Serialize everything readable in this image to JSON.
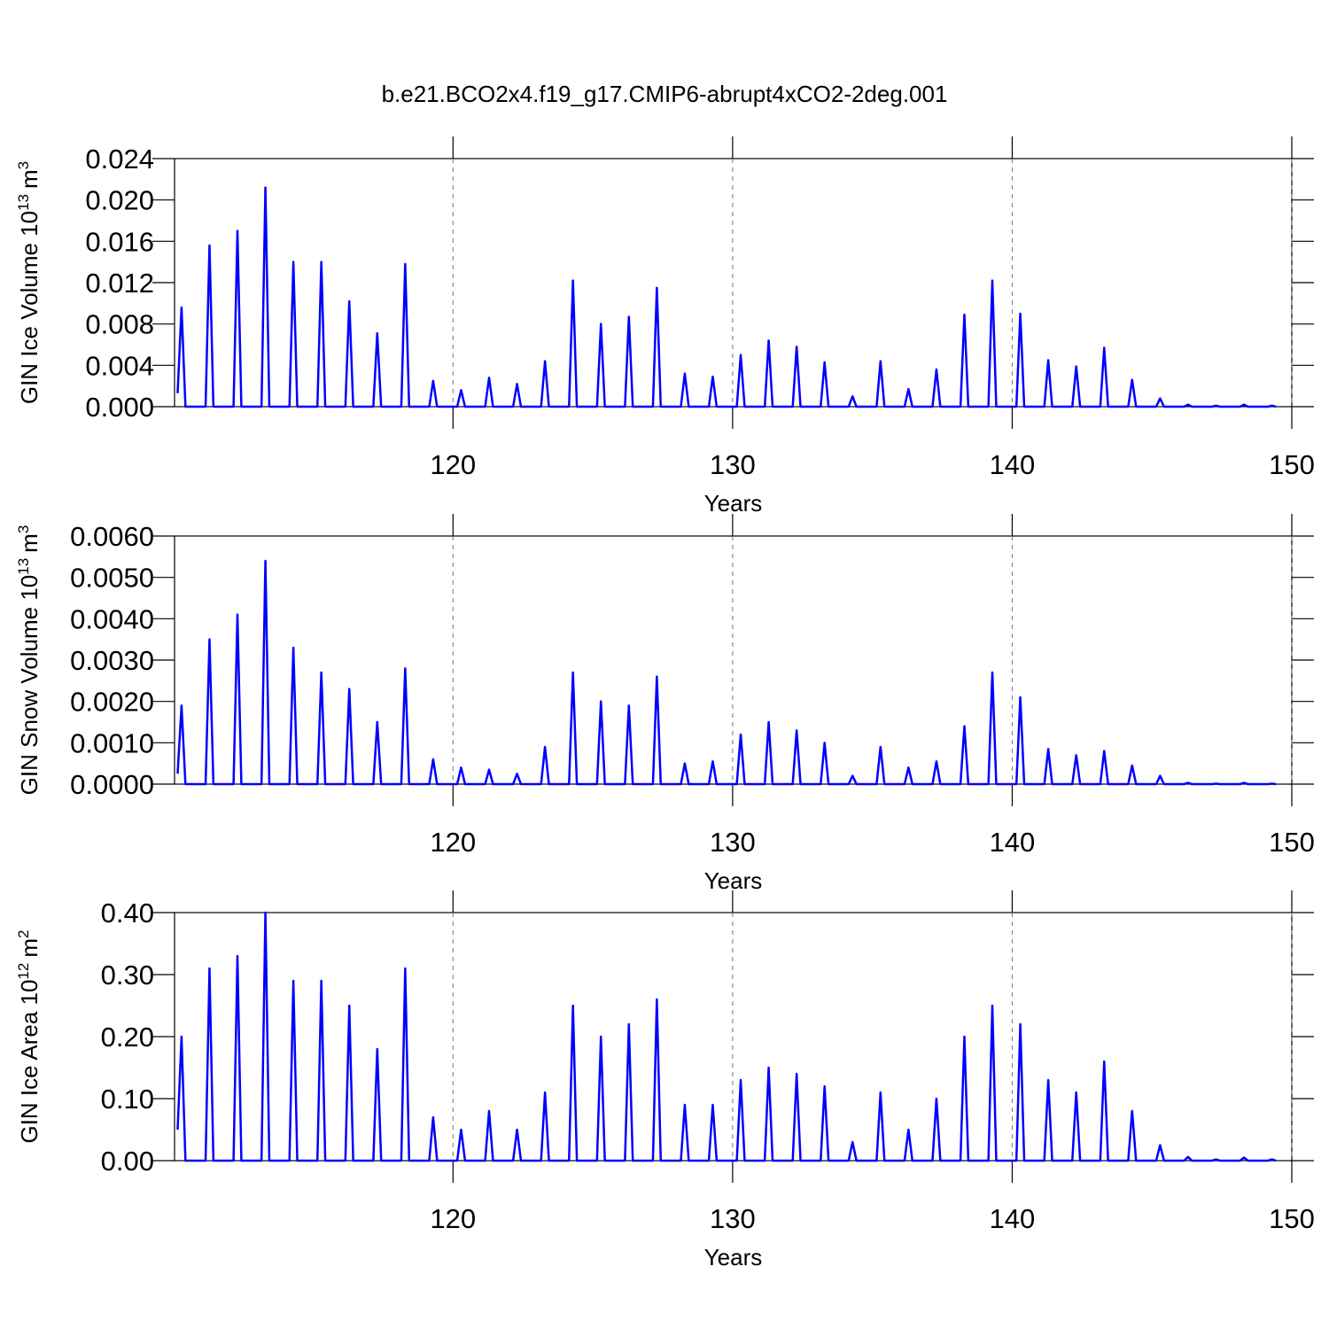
{
  "title": "b.e21.BCO2x4.f19_g17.CMIP6-abrupt4xCO2-2deg.001",
  "chart_data": [
    {
      "type": "line",
      "xlabel": "Years",
      "ylabel": {
        "text": "GIN Ice Volume 10",
        "exp": "13",
        "unit": "m",
        "unit_exp": "3"
      },
      "xlim": [
        110.04,
        150
      ],
      "xticks": [
        120,
        130,
        140,
        150
      ],
      "ylim": [
        0,
        0.024
      ],
      "yticks": [
        {
          "value": 0,
          "label": "0.000"
        },
        {
          "value": 0.004,
          "label": "0.004"
        },
        {
          "value": 0.008,
          "label": "0.008"
        },
        {
          "value": 0.012,
          "label": "0.012"
        },
        {
          "value": 0.016,
          "label": "0.016"
        },
        {
          "value": 0.02,
          "label": "0.020"
        },
        {
          "value": 0.024,
          "label": "0.024"
        }
      ],
      "grid": true,
      "x": [
        110.15,
        110.29,
        110.43,
        111.15,
        111.29,
        111.43,
        112.15,
        112.29,
        112.43,
        113.15,
        113.29,
        113.43,
        114.15,
        114.29,
        114.43,
        115.15,
        115.29,
        115.43,
        116.15,
        116.29,
        116.43,
        117.15,
        117.29,
        117.43,
        118.15,
        118.29,
        118.43,
        119.15,
        119.29,
        119.43,
        120.15,
        120.29,
        120.43,
        121.15,
        121.29,
        121.43,
        122.15,
        122.29,
        122.43,
        123.15,
        123.29,
        123.43,
        124.15,
        124.29,
        124.43,
        125.15,
        125.29,
        125.43,
        126.15,
        126.29,
        126.43,
        127.15,
        127.29,
        127.43,
        128.15,
        128.29,
        128.43,
        129.15,
        129.29,
        129.43,
        130.15,
        130.29,
        130.43,
        131.15,
        131.29,
        131.43,
        132.15,
        132.29,
        132.43,
        133.15,
        133.29,
        133.43,
        134.15,
        134.29,
        134.43,
        135.15,
        135.29,
        135.43,
        136.15,
        136.29,
        136.43,
        137.15,
        137.29,
        137.43,
        138.15,
        138.29,
        138.43,
        139.15,
        139.29,
        139.43,
        140.15,
        140.29,
        140.43,
        141.15,
        141.29,
        141.43,
        142.15,
        142.29,
        142.43,
        143.15,
        143.29,
        143.43,
        144.15,
        144.29,
        144.43,
        145.15,
        145.29,
        145.43,
        146.15,
        146.29,
        146.43,
        147.15,
        147.29,
        147.43,
        148.15,
        148.29,
        148.43,
        149.15,
        149.29,
        149.43
      ],
      "series": [
        {
          "color": "#0000ff",
          "values": [
            0.0013,
            0.0096,
            0,
            0,
            0.0156,
            0,
            0,
            0.017,
            0,
            0,
            0.0212,
            0,
            0,
            0.014,
            0,
            0,
            0.014,
            0,
            0,
            0.0102,
            0,
            0,
            0.0071,
            0,
            0,
            0.0138,
            0,
            0,
            0.0025,
            0,
            0,
            0.0016,
            0,
            0,
            0.0028,
            0,
            0,
            0.0022,
            0,
            0,
            0.0044,
            0,
            0,
            0.0122,
            0,
            0,
            0.008,
            0,
            0,
            0.0087,
            0,
            0,
            0.0115,
            0,
            0,
            0.0032,
            0,
            0,
            0.0029,
            0,
            0,
            0.005,
            0,
            0,
            0.0064,
            0,
            0,
            0.0058,
            0,
            0,
            0.0043,
            0,
            0,
            0.001,
            0,
            0,
            0.0044,
            0,
            0,
            0.0017,
            0,
            0,
            0.0036,
            0,
            0,
            0.0089,
            0,
            0,
            0.0122,
            0,
            0,
            0.009,
            0,
            0,
            0.0045,
            0,
            0,
            0.0039,
            0,
            0,
            0.0057,
            0,
            0,
            0.0026,
            0,
            0,
            0.0008,
            0,
            0,
            0.0002,
            0,
            0,
            0.0001,
            0,
            0,
            0.0002,
            0,
            0,
            0.0001,
            0
          ]
        }
      ]
    },
    {
      "type": "line",
      "xlabel": "Years",
      "ylabel": {
        "text": "GIN Snow Volume 10",
        "exp": "13",
        "unit": "m",
        "unit_exp": "3"
      },
      "xlim": [
        110.04,
        150
      ],
      "xticks": [
        120,
        130,
        140,
        150
      ],
      "ylim": [
        0,
        0.006
      ],
      "yticks": [
        {
          "value": 0,
          "label": "0.0000"
        },
        {
          "value": 0.001,
          "label": "0.0010"
        },
        {
          "value": 0.002,
          "label": "0.0020"
        },
        {
          "value": 0.003,
          "label": "0.0030"
        },
        {
          "value": 0.004,
          "label": "0.0040"
        },
        {
          "value": 0.005,
          "label": "0.0050"
        },
        {
          "value": 0.006,
          "label": "0.0060"
        }
      ],
      "grid": true,
      "x": [
        110.15,
        110.29,
        110.43,
        111.15,
        111.29,
        111.43,
        112.15,
        112.29,
        112.43,
        113.15,
        113.29,
        113.43,
        114.15,
        114.29,
        114.43,
        115.15,
        115.29,
        115.43,
        116.15,
        116.29,
        116.43,
        117.15,
        117.29,
        117.43,
        118.15,
        118.29,
        118.43,
        119.15,
        119.29,
        119.43,
        120.15,
        120.29,
        120.43,
        121.15,
        121.29,
        121.43,
        122.15,
        122.29,
        122.43,
        123.15,
        123.29,
        123.43,
        124.15,
        124.29,
        124.43,
        125.15,
        125.29,
        125.43,
        126.15,
        126.29,
        126.43,
        127.15,
        127.29,
        127.43,
        128.15,
        128.29,
        128.43,
        129.15,
        129.29,
        129.43,
        130.15,
        130.29,
        130.43,
        131.15,
        131.29,
        131.43,
        132.15,
        132.29,
        132.43,
        133.15,
        133.29,
        133.43,
        134.15,
        134.29,
        134.43,
        135.15,
        135.29,
        135.43,
        136.15,
        136.29,
        136.43,
        137.15,
        137.29,
        137.43,
        138.15,
        138.29,
        138.43,
        139.15,
        139.29,
        139.43,
        140.15,
        140.29,
        140.43,
        141.15,
        141.29,
        141.43,
        142.15,
        142.29,
        142.43,
        143.15,
        143.29,
        143.43,
        144.15,
        144.29,
        144.43,
        145.15,
        145.29,
        145.43,
        146.15,
        146.29,
        146.43,
        147.15,
        147.29,
        147.43,
        148.15,
        148.29,
        148.43,
        149.15,
        149.29,
        149.43
      ],
      "series": [
        {
          "color": "#0000ff",
          "values": [
            0.00025,
            0.0019,
            0,
            0,
            0.0035,
            0,
            0,
            0.0041,
            0,
            0,
            0.0054,
            0,
            0,
            0.0033,
            0,
            0,
            0.0027,
            0,
            0,
            0.0023,
            0,
            0,
            0.0015,
            0,
            0,
            0.0028,
            0,
            0,
            0.0006,
            0,
            0,
            0.0004,
            0,
            0,
            0.00035,
            0,
            0,
            0.00025,
            0,
            0,
            0.0009,
            0,
            0,
            0.0027,
            0,
            0,
            0.002,
            0,
            0,
            0.0019,
            0,
            0,
            0.0026,
            0,
            0,
            0.0005,
            0,
            0,
            0.00055,
            0,
            0,
            0.0012,
            0,
            0,
            0.0015,
            0,
            0,
            0.0013,
            0,
            0,
            0.001,
            0,
            0,
            0.0002,
            0,
            0,
            0.0009,
            0,
            0,
            0.0004,
            0,
            0,
            0.00055,
            0,
            0,
            0.0014,
            0,
            0,
            0.0027,
            0,
            0,
            0.0021,
            0,
            0,
            0.00085,
            0,
            0,
            0.0007,
            0,
            0,
            0.0008,
            0,
            0,
            0.00045,
            0,
            0,
            0.0002,
            0,
            0,
            3e-05,
            0,
            0,
            1e-05,
            0,
            0,
            3e-05,
            0,
            0,
            1e-05,
            0
          ]
        }
      ]
    },
    {
      "type": "line",
      "xlabel": "Years",
      "ylabel": {
        "text": "GIN Ice Area 10",
        "exp": "12",
        "unit": "m",
        "unit_exp": "2"
      },
      "xlim": [
        110.04,
        150
      ],
      "xticks": [
        120,
        130,
        140,
        150
      ],
      "ylim": [
        0,
        0.4
      ],
      "yticks": [
        {
          "value": 0,
          "label": "0.00"
        },
        {
          "value": 0.1,
          "label": "0.10"
        },
        {
          "value": 0.2,
          "label": "0.20"
        },
        {
          "value": 0.3,
          "label": "0.30"
        },
        {
          "value": 0.4,
          "label": "0.40"
        }
      ],
      "grid": true,
      "x": [
        110.15,
        110.29,
        110.43,
        111.15,
        111.29,
        111.43,
        112.15,
        112.29,
        112.43,
        113.15,
        113.29,
        113.43,
        114.15,
        114.29,
        114.43,
        115.15,
        115.29,
        115.43,
        116.15,
        116.29,
        116.43,
        117.15,
        117.29,
        117.43,
        118.15,
        118.29,
        118.43,
        119.15,
        119.29,
        119.43,
        120.15,
        120.29,
        120.43,
        121.15,
        121.29,
        121.43,
        122.15,
        122.29,
        122.43,
        123.15,
        123.29,
        123.43,
        124.15,
        124.29,
        124.43,
        125.15,
        125.29,
        125.43,
        126.15,
        126.29,
        126.43,
        127.15,
        127.29,
        127.43,
        128.15,
        128.29,
        128.43,
        129.15,
        129.29,
        129.43,
        130.15,
        130.29,
        130.43,
        131.15,
        131.29,
        131.43,
        132.15,
        132.29,
        132.43,
        133.15,
        133.29,
        133.43,
        134.15,
        134.29,
        134.43,
        135.15,
        135.29,
        135.43,
        136.15,
        136.29,
        136.43,
        137.15,
        137.29,
        137.43,
        138.15,
        138.29,
        138.43,
        139.15,
        139.29,
        139.43,
        140.15,
        140.29,
        140.43,
        141.15,
        141.29,
        141.43,
        142.15,
        142.29,
        142.43,
        143.15,
        143.29,
        143.43,
        144.15,
        144.29,
        144.43,
        145.15,
        145.29,
        145.43,
        146.15,
        146.29,
        146.43,
        147.15,
        147.29,
        147.43,
        148.15,
        148.29,
        148.43,
        149.15,
        149.29,
        149.43
      ],
      "series": [
        {
          "color": "#0000ff",
          "values": [
            0.05,
            0.2,
            0,
            0,
            0.31,
            0,
            0,
            0.33,
            0,
            0,
            0.4,
            0,
            0,
            0.29,
            0,
            0,
            0.29,
            0,
            0,
            0.25,
            0,
            0,
            0.18,
            0,
            0,
            0.31,
            0,
            0,
            0.07,
            0,
            0,
            0.05,
            0,
            0,
            0.08,
            0,
            0,
            0.05,
            0,
            0,
            0.11,
            0,
            0,
            0.25,
            0,
            0,
            0.2,
            0,
            0,
            0.22,
            0,
            0,
            0.26,
            0,
            0,
            0.09,
            0,
            0,
            0.09,
            0,
            0,
            0.13,
            0,
            0,
            0.15,
            0,
            0,
            0.14,
            0,
            0,
            0.12,
            0,
            0,
            0.03,
            0,
            0,
            0.11,
            0,
            0,
            0.05,
            0,
            0,
            0.1,
            0,
            0,
            0.2,
            0,
            0,
            0.25,
            0,
            0,
            0.22,
            0,
            0,
            0.13,
            0,
            0,
            0.11,
            0,
            0,
            0.16,
            0,
            0,
            0.08,
            0,
            0,
            0.025,
            0,
            0,
            0.006,
            0,
            0,
            0.002,
            0,
            0,
            0.005,
            0,
            0,
            0.002,
            0
          ]
        }
      ]
    }
  ]
}
